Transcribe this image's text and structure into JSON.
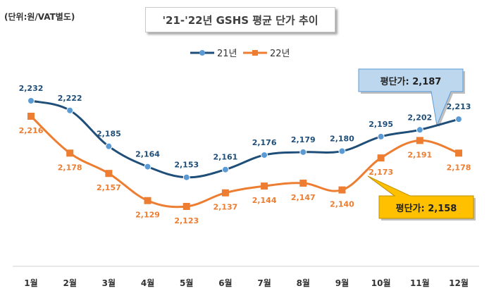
{
  "unit_label": "(단위:원/VAT별도)",
  "chart_data": {
    "type": "line",
    "title": "'21-'22년  GSHS 평균 단가 추이",
    "categories": [
      "1월",
      "2월",
      "3월",
      "4월",
      "5월",
      "6월",
      "7월",
      "8월",
      "9월",
      "10월",
      "11월",
      "12월"
    ],
    "series": [
      {
        "name": "21년",
        "color": "#1f4e79",
        "marker_color": "#5b9bd5",
        "label_color": "#1f4e79",
        "values": [
          2232,
          2222,
          2185,
          2164,
          2153,
          2161,
          2176,
          2179,
          2180,
          2195,
          2202,
          2213
        ]
      },
      {
        "name": "22년",
        "color": "#ed7d31",
        "marker_color": "#ed7d31",
        "label_color": "#ed7d31",
        "values": [
          2216,
          2178,
          2157,
          2129,
          2123,
          2137,
          2144,
          2147,
          2140,
          2173,
          2191,
          2178
        ]
      }
    ],
    "ylim": [
      2090,
      2250
    ],
    "grid": false,
    "legend": "top-center",
    "annotations": [
      {
        "text": "평단가: 2,187",
        "series": 0,
        "fill": "#bdd7ee",
        "border": "#5b9bd5"
      },
      {
        "text": "평단가: 2,158",
        "series": 1,
        "fill": "#ffc000",
        "border": "#bf8f00"
      }
    ]
  }
}
